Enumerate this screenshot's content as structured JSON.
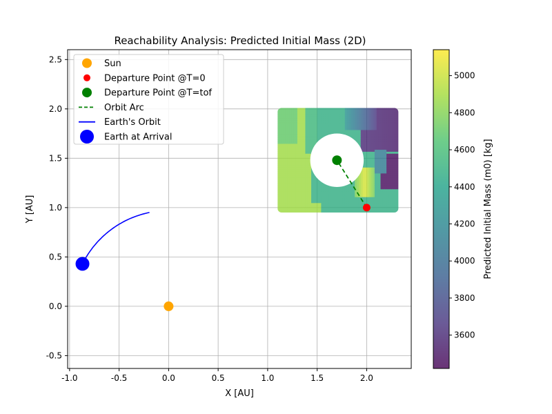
{
  "chart_data": {
    "type": "scatter",
    "title": "Reachability Analysis: Predicted Initial Mass (2D)",
    "xlabel": "X [AU]",
    "ylabel": "Y [AU]",
    "xlim": [
      -1.02,
      2.45
    ],
    "ylim": [
      -0.63,
      2.6
    ],
    "xticks": [
      "-1.0",
      "-0.5",
      "0.0",
      "0.5",
      "1.0",
      "1.5",
      "2.0"
    ],
    "xtick_values": [
      -1.0,
      -0.5,
      0.0,
      0.5,
      1.0,
      1.5,
      2.0
    ],
    "yticks": [
      "-0.5",
      "0.0",
      "0.5",
      "1.0",
      "1.5",
      "2.0",
      "2.5"
    ],
    "ytick_values": [
      -0.5,
      0.0,
      0.5,
      1.0,
      1.5,
      2.0,
      2.5
    ],
    "grid": true,
    "legend_position": "top-left",
    "legend": [
      {
        "label": "Sun",
        "kind": "marker",
        "color": "#ffa500"
      },
      {
        "label": "Departure Point @T=0",
        "kind": "marker-small",
        "color": "#ff0000"
      },
      {
        "label": "Departure Point @T=tof",
        "kind": "marker",
        "color": "#008000"
      },
      {
        "label": "Orbit Arc",
        "kind": "dashed-line",
        "color": "#008000"
      },
      {
        "label": "Earth's Orbit",
        "kind": "line",
        "color": "#0000ff"
      },
      {
        "label": "Earth at Arrival",
        "kind": "marker-large",
        "color": "#0000ff"
      }
    ],
    "points": {
      "sun": {
        "x": 0.0,
        "y": 0.0
      },
      "departure_t0": {
        "x": 2.0,
        "y": 1.0
      },
      "departure_tof": {
        "x": 1.7,
        "y": 1.48
      },
      "earth_arrival": {
        "x": -0.87,
        "y": 0.43
      }
    },
    "earth_orbit": {
      "radius": 0.97,
      "start_deg": 153.7,
      "end_deg": 101.5
    },
    "orbit_arc": {
      "from": [
        2.0,
        1.0
      ],
      "to": [
        1.7,
        1.48
      ]
    },
    "heatmap_region": {
      "xlim": [
        1.1,
        2.32
      ],
      "ylim": [
        0.95,
        2.01
      ],
      "hole_center": [
        1.7,
        1.48
      ],
      "hole_radius": 0.27
    },
    "colorbar": {
      "label": "Predicted Initial Mass (m0) [kg]",
      "range": [
        3420,
        5140
      ],
      "ticks": [
        "3600",
        "3800",
        "4000",
        "4200",
        "4400",
        "4600",
        "4800",
        "5000"
      ],
      "tick_values": [
        3600,
        3800,
        4000,
        4200,
        4400,
        4600,
        4800,
        5000
      ],
      "colormap": [
        "#440154",
        "#46327e",
        "#365c8d",
        "#277f8e",
        "#1fa187",
        "#4ac16d",
        "#a0da39",
        "#fde725"
      ]
    }
  }
}
